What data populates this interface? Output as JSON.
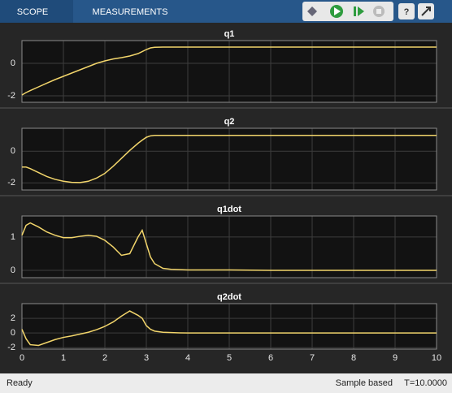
{
  "toolbar": {
    "tabs": [
      "SCOPE",
      "MEASUREMENTS"
    ]
  },
  "status_bar": {
    "left": "Ready",
    "mode": "Sample based",
    "time": "T=10.0000"
  },
  "chart_data": [
    {
      "type": "line",
      "title": "q1",
      "color": "#f2d56b",
      "x": [
        0,
        0.1,
        0.2,
        0.4,
        0.6,
        0.8,
        1,
        1.2,
        1.4,
        1.6,
        1.8,
        2,
        2.2,
        2.4,
        2.6,
        2.8,
        2.9,
        3,
        3.1,
        3.2,
        3.4,
        3.6,
        3.8,
        4,
        5,
        6,
        7,
        8,
        9,
        10
      ],
      "values": [
        -1.95,
        -1.8,
        -1.68,
        -1.45,
        -1.22,
        -1.0,
        -0.8,
        -0.6,
        -0.4,
        -0.2,
        0,
        0.15,
        0.27,
        0.35,
        0.45,
        0.6,
        0.72,
        0.85,
        0.95,
        0.99,
        1,
        1,
        1,
        1,
        1,
        1,
        1,
        1,
        1,
        1
      ],
      "xlim": [
        0,
        10
      ],
      "xticks": [
        0,
        1,
        2,
        3,
        4,
        5,
        6,
        7,
        8,
        9,
        10
      ],
      "ylim": [
        -2.4,
        1.4
      ],
      "yticks": [
        -2,
        0
      ],
      "grid": true
    },
    {
      "type": "line",
      "title": "q2",
      "color": "#f2d56b",
      "x": [
        0,
        0.1,
        0.2,
        0.4,
        0.6,
        0.8,
        1,
        1.2,
        1.4,
        1.6,
        1.8,
        2,
        2.2,
        2.4,
        2.6,
        2.8,
        2.9,
        3,
        3.1,
        3.2,
        3.4,
        3.6,
        3.8,
        4,
        5,
        6,
        7,
        8,
        9,
        10
      ],
      "values": [
        -1,
        -1,
        -1.1,
        -1.35,
        -1.6,
        -1.78,
        -1.9,
        -1.97,
        -1.98,
        -1.9,
        -1.7,
        -1.4,
        -0.95,
        -0.45,
        0.05,
        0.5,
        0.7,
        0.88,
        0.97,
        1,
        1,
        1,
        1,
        1,
        1,
        1,
        1,
        1,
        1,
        1
      ],
      "xlim": [
        0,
        10
      ],
      "xticks": [
        0,
        1,
        2,
        3,
        4,
        5,
        6,
        7,
        8,
        9,
        10
      ],
      "ylim": [
        -2.45,
        1.45
      ],
      "yticks": [
        -2,
        0
      ],
      "grid": true
    },
    {
      "type": "line",
      "title": "q1dot",
      "color": "#f2d56b",
      "x": [
        0,
        0.1,
        0.2,
        0.4,
        0.6,
        0.8,
        1,
        1.2,
        1.4,
        1.6,
        1.8,
        2,
        2.2,
        2.4,
        2.6,
        2.8,
        2.9,
        3,
        3.1,
        3.2,
        3.4,
        3.6,
        3.8,
        4,
        5,
        6,
        7,
        8,
        9,
        10
      ],
      "values": [
        1.05,
        1.35,
        1.42,
        1.3,
        1.15,
        1.05,
        0.98,
        0.98,
        1.02,
        1.05,
        1.02,
        0.9,
        0.7,
        0.45,
        0.5,
        1.0,
        1.2,
        0.8,
        0.4,
        0.2,
        0.06,
        0.03,
        0.02,
        0.01,
        0.01,
        0,
        0,
        0,
        0,
        0
      ],
      "xlim": [
        0,
        10
      ],
      "xticks": [
        0,
        1,
        2,
        3,
        4,
        5,
        6,
        7,
        8,
        9,
        10
      ],
      "ylim": [
        -0.22,
        1.63
      ],
      "yticks": [
        0,
        1
      ],
      "grid": true
    },
    {
      "type": "line",
      "title": "q2dot",
      "color": "#f2d56b",
      "x": [
        0,
        0.1,
        0.2,
        0.4,
        0.6,
        0.8,
        1,
        1.2,
        1.4,
        1.6,
        1.8,
        2,
        2.2,
        2.4,
        2.6,
        2.8,
        2.9,
        3,
        3.1,
        3.2,
        3.4,
        3.6,
        3.8,
        4,
        5,
        6,
        7,
        8,
        9,
        10
      ],
      "values": [
        0.5,
        -0.8,
        -1.6,
        -1.7,
        -1.3,
        -0.9,
        -0.6,
        -0.4,
        -0.15,
        0.1,
        0.45,
        0.9,
        1.5,
        2.3,
        3.0,
        2.4,
        2.0,
        1.0,
        0.5,
        0.25,
        0.1,
        0.05,
        0.02,
        0,
        0,
        0,
        0,
        0,
        0,
        0
      ],
      "xlim": [
        0,
        10
      ],
      "xticks": [
        0,
        1,
        2,
        3,
        4,
        5,
        6,
        7,
        8,
        9,
        10
      ],
      "ylim": [
        -2.2,
        4
      ],
      "yticks": [
        -2,
        0,
        2
      ],
      "grid": true
    }
  ]
}
